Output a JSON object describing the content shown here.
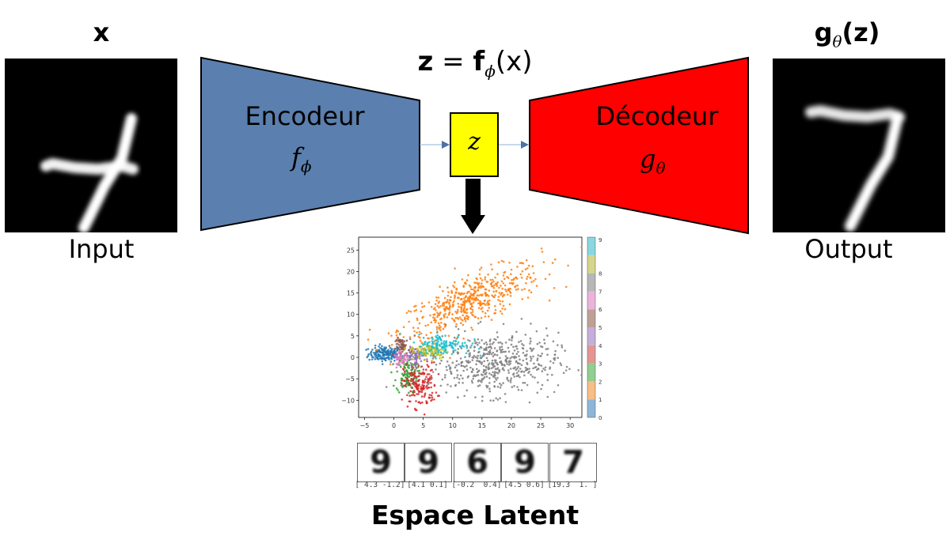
{
  "input": {
    "title": "x",
    "caption": "Input"
  },
  "output": {
    "title_main": "g",
    "title_sub": "θ",
    "title_arg": "(z)",
    "caption": "Output"
  },
  "equation": {
    "lhs": "z",
    "eq": " = ",
    "f": "f",
    "sub": "ϕ",
    "arg": "(x)"
  },
  "encoder": {
    "name": "Encodeur",
    "sym": "f",
    "sub": "ϕ",
    "color": "#5b7fae"
  },
  "latent_box": {
    "label": "z",
    "color": "#ffff00"
  },
  "decoder": {
    "name": "Décodeur",
    "sym": "g",
    "sub": "θ",
    "color": "#ff0000"
  },
  "latent_space_title": "Espace Latent",
  "samples": [
    {
      "digit": "9",
      "coords": "[ 4.3 -1.2]"
    },
    {
      "digit": "9",
      "coords": "[4.1 0.1]"
    },
    {
      "digit": "6",
      "coords": "[-0.2  0.4]"
    },
    {
      "digit": "9",
      "coords": "[4.5 0.6]"
    },
    {
      "digit": "7",
      "coords": "[19.3  1. ]"
    }
  ],
  "chart_data": {
    "type": "scatter",
    "xlim": [
      -6,
      32
    ],
    "ylim": [
      -14,
      28
    ],
    "xticks": [
      "−5",
      "0",
      "5",
      "10",
      "15",
      "20",
      "25",
      "30"
    ],
    "xtick_values": [
      -5,
      0,
      5,
      10,
      15,
      20,
      25,
      30
    ],
    "yticks": [
      "25",
      "20",
      "15",
      "10",
      "5",
      "0",
      "−5",
      "−10"
    ],
    "ytick_values": [
      25,
      20,
      15,
      10,
      5,
      0,
      -5,
      -10
    ],
    "colorbar": {
      "labels": [
        "0",
        "1",
        "2",
        "3",
        "4",
        "5",
        "6",
        "7",
        "8",
        "9"
      ],
      "colors": [
        "#8db6d8",
        "#f9bd86",
        "#8fcf8f",
        "#e49593",
        "#c3afd9",
        "#bfa097",
        "#ecb3da",
        "#b7b7b7",
        "#d5d58c",
        "#89d7e0"
      ]
    },
    "clusters": [
      {
        "class": "0",
        "color": "#1f77b4",
        "center": [
          -1.5,
          0.8
        ],
        "spread": [
          1.4,
          0.9
        ],
        "n": 160
      },
      {
        "class": "1",
        "color": "#ff7f0e",
        "center": [
          13,
          13
        ],
        "spread": [
          6,
          2.8
        ],
        "n": 520,
        "slope": 0.55
      },
      {
        "class": "2",
        "color": "#2ca02c",
        "center": [
          2.2,
          -4
        ],
        "spread": [
          0.9,
          2.2
        ],
        "n": 110
      },
      {
        "class": "3",
        "color": "#d62728",
        "center": [
          4.5,
          -6.5
        ],
        "spread": [
          1.4,
          2.6
        ],
        "n": 170
      },
      {
        "class": "4",
        "color": "#9467bd",
        "center": [
          3.5,
          0.5
        ],
        "spread": [
          1,
          0.9
        ],
        "n": 70
      },
      {
        "class": "5",
        "color": "#8c564b",
        "center": [
          1.5,
          2.5
        ],
        "spread": [
          0.6,
          1
        ],
        "n": 60
      },
      {
        "class": "6",
        "color": "#e377c2",
        "center": [
          1.2,
          -0.3
        ],
        "spread": [
          0.6,
          0.7
        ],
        "n": 50
      },
      {
        "class": "7",
        "color": "#7f7f7f",
        "center": [
          17,
          -1.5
        ],
        "spread": [
          5.5,
          3.6
        ],
        "n": 520
      },
      {
        "class": "8",
        "color": "#bcbd22",
        "center": [
          6,
          1.5
        ],
        "spread": [
          1.6,
          0.9
        ],
        "n": 100
      },
      {
        "class": "9",
        "color": "#17becf",
        "center": [
          8.5,
          3
        ],
        "spread": [
          2.2,
          1.2
        ],
        "n": 130
      }
    ]
  }
}
